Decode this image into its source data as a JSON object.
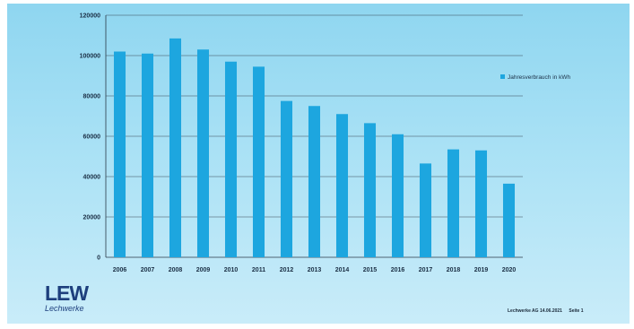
{
  "chart_data": {
    "type": "bar",
    "categories": [
      "2006",
      "2007",
      "2008",
      "2009",
      "2010",
      "2011",
      "2012",
      "2013",
      "2014",
      "2015",
      "2016",
      "2017",
      "2018",
      "2019",
      "2020"
    ],
    "series": [
      {
        "name": "Jahresverbrauch in kWh",
        "values": [
          102000,
          101000,
          108500,
          103000,
          97000,
          94500,
          77500,
          75000,
          71000,
          66500,
          61000,
          46500,
          53500,
          53000,
          36500
        ],
        "color": "#1da6df"
      }
    ],
    "yticks": [
      "0",
      "20000",
      "40000",
      "60000",
      "80000",
      "100000",
      "120000"
    ],
    "ylim": [
      0,
      120000
    ],
    "grid": true,
    "legend_position": "right"
  },
  "logo": {
    "name": "LEW",
    "subtitle": "Lechwerke"
  },
  "footer": {
    "company_date": "Lechwerke AG   14.06.2021",
    "page": "Seite 1"
  }
}
